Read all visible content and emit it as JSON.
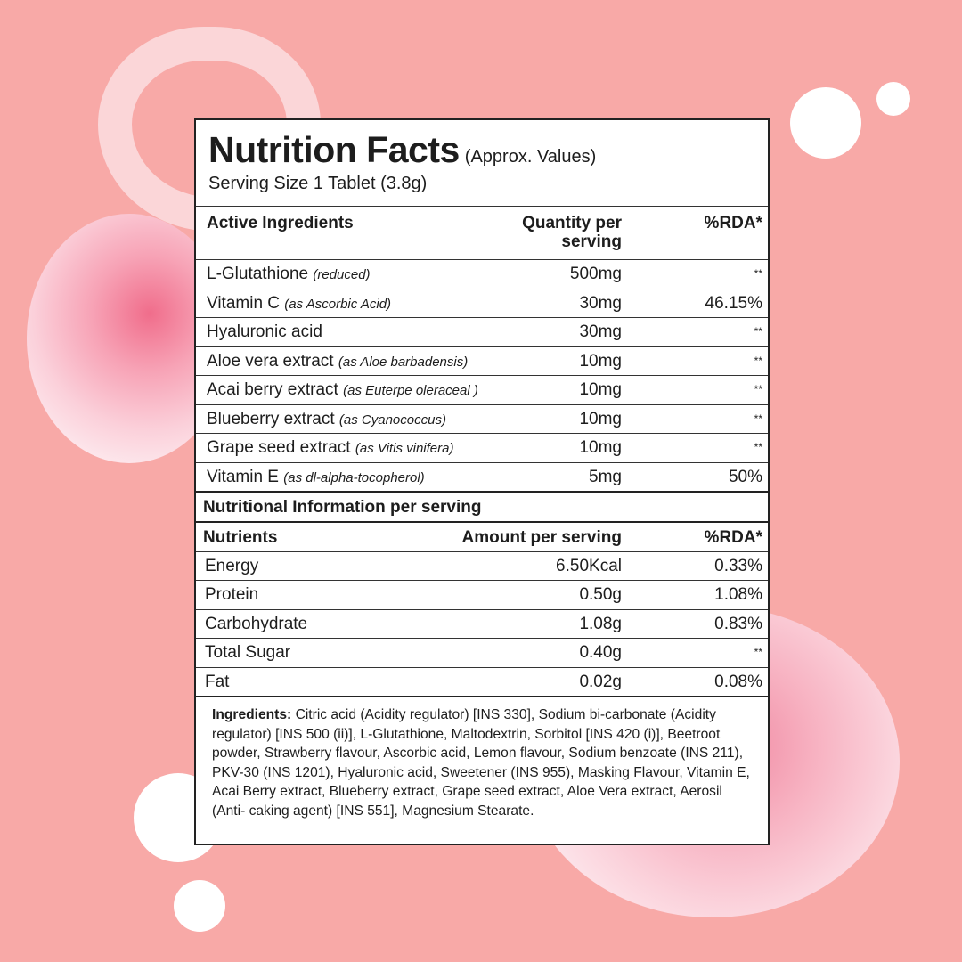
{
  "header": {
    "title": "Nutrition Facts",
    "approx": "(Approx. Values)",
    "serving_size": "Serving Size 1 Tablet (3.8g)"
  },
  "active": {
    "col_name": "Active Ingredients",
    "col_qty": "Quantity per serving",
    "col_rda": "%RDA*",
    "rows": [
      {
        "name": "L-Glutathione",
        "note": "(reduced)",
        "qty": "500mg",
        "rda": "**"
      },
      {
        "name": "Vitamin C",
        "note": "(as Ascorbic Acid)",
        "qty": "30mg",
        "rda": "46.15%"
      },
      {
        "name": "Hyaluronic acid",
        "note": "",
        "qty": "30mg",
        "rda": "**"
      },
      {
        "name": "Aloe vera extract",
        "note": "(as Aloe barbadensis)",
        "qty": "10mg",
        "rda": "**"
      },
      {
        "name": "Acai berry extract",
        "note": "(as Euterpe oleraceal )",
        "qty": "10mg",
        "rda": "**"
      },
      {
        "name": "Blueberry extract",
        "note": "(as Cyanococcus)",
        "qty": "10mg",
        "rda": "**"
      },
      {
        "name": "Grape seed extract",
        "note": "(as Vitis vinifera)",
        "qty": "10mg",
        "rda": "**"
      },
      {
        "name": "Vitamin E",
        "note": "(as dl-alpha-tocopherol)",
        "qty": "5mg",
        "rda": "50%"
      }
    ]
  },
  "nutrition": {
    "section_title": "Nutritional Information per serving",
    "col_name": "Nutrients",
    "col_amount": "Amount per serving",
    "col_rda": "%RDA*",
    "rows": [
      {
        "name": "Energy",
        "amount": "6.50Kcal",
        "rda": "0.33%"
      },
      {
        "name": "Protein",
        "amount": "0.50g",
        "rda": "1.08%"
      },
      {
        "name": "Carbohydrate",
        "amount": "1.08g",
        "rda": "0.83%"
      },
      {
        "name": "Total Sugar",
        "amount": "0.40g",
        "rda": "**"
      },
      {
        "name": "Fat",
        "amount": "0.02g",
        "rda": "0.08%"
      }
    ]
  },
  "ingredients": {
    "label": "Ingredients:",
    "text": " Citric acid (Acidity regulator) [INS 330], Sodium bi-carbonate (Acidity regulator) [INS 500 (ii)], L-Glutathione, Maltodextrin, Sorbitol [INS 420 (i)], Beetroot powder, Strawberry flavour, Ascorbic acid, Lemon flavour, Sodium benzoate (INS 211), PKV-30 (INS 1201), Hyaluronic acid, Sweetener (INS 955), Masking Flavour, Vitamin E, Acai Berry extract, Blueberry extract, Grape seed extract, Aloe Vera extract, Aerosil (Anti- caking agent) [INS 551], Magnesium Stearate."
  },
  "colors": {
    "background": "#f8a9a7",
    "panel": "#ffffff",
    "text": "#1d1d1d"
  }
}
